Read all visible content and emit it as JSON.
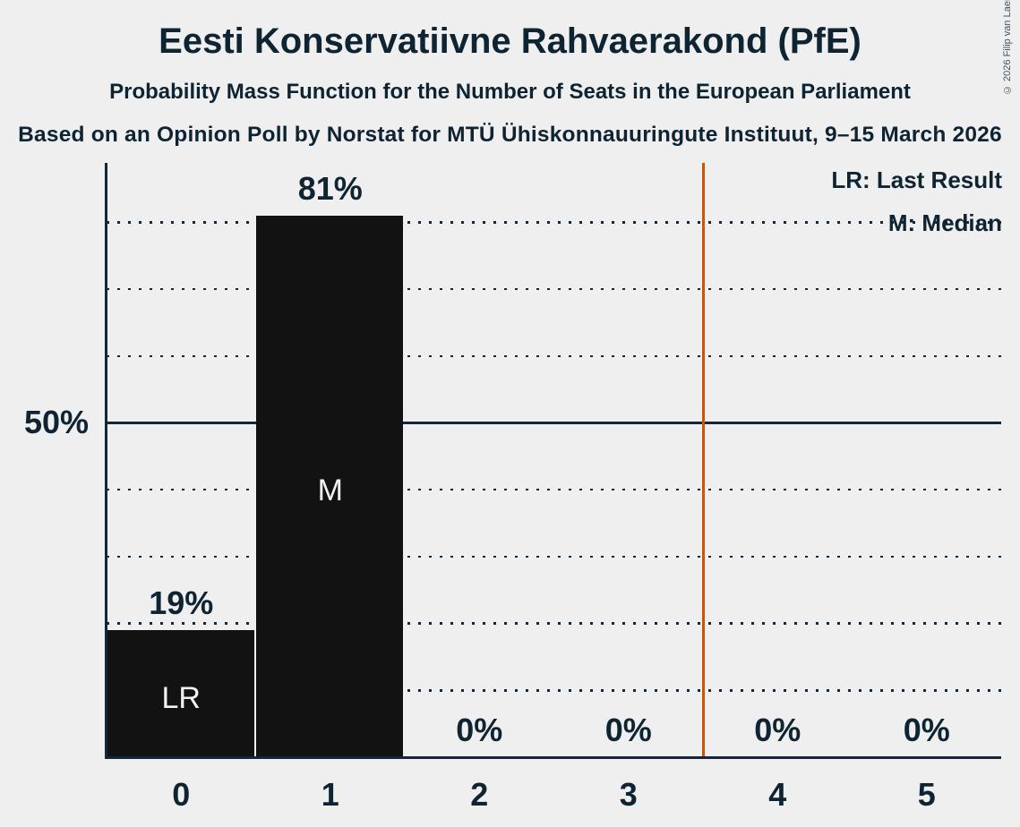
{
  "header": {
    "title": "Eesti Konservatiivne Rahvaerakond (PfE)",
    "subtitle": "Probability Mass Function for the Number of Seats in the European Parliament",
    "source": "Based on an Opinion Poll by Norstat for MTÜ Ühiskonnauuringute Instituut, 9–15 March 2026",
    "copyright": "© 2026 Filip van Laenen"
  },
  "legend": {
    "last_result": "LR: Last Result",
    "median": "M: Median"
  },
  "y_axis": {
    "tick_label": "50%",
    "tick_value": 50
  },
  "chart_data": {
    "type": "bar",
    "title": "Eesti Konservatiivne Rahvaerakond (PfE)",
    "subtitle": "Probability Mass Function for the Number of Seats in the European Parliament",
    "categories": [
      "0",
      "1",
      "2",
      "3",
      "4",
      "5"
    ],
    "values": [
      19,
      81,
      0,
      0,
      0,
      0
    ],
    "value_labels": [
      "19%",
      "81%",
      "0%",
      "0%",
      "0%",
      "0%"
    ],
    "annotations": [
      "LR",
      "M",
      "",
      "",
      "",
      ""
    ],
    "xlabel": "",
    "ylabel": "",
    "ylim": [
      0,
      89
    ],
    "y_tick_labels_shown": [
      "50%"
    ],
    "gridlines_percent": [
      10,
      20,
      30,
      40,
      50,
      60,
      70,
      80
    ],
    "solid_gridline_percent": 50,
    "grid_style": "dotted horizontal",
    "majority_threshold_x": 3.5,
    "legend_entries": [
      "LR: Last Result",
      "M: Median"
    ],
    "legend_position": "top-right",
    "colors": {
      "bar": "#121212",
      "background": "#EFEFEF",
      "ink": "#0F2433",
      "majority_line": "#CD5500",
      "inside_label": "#F2F2F2"
    }
  }
}
